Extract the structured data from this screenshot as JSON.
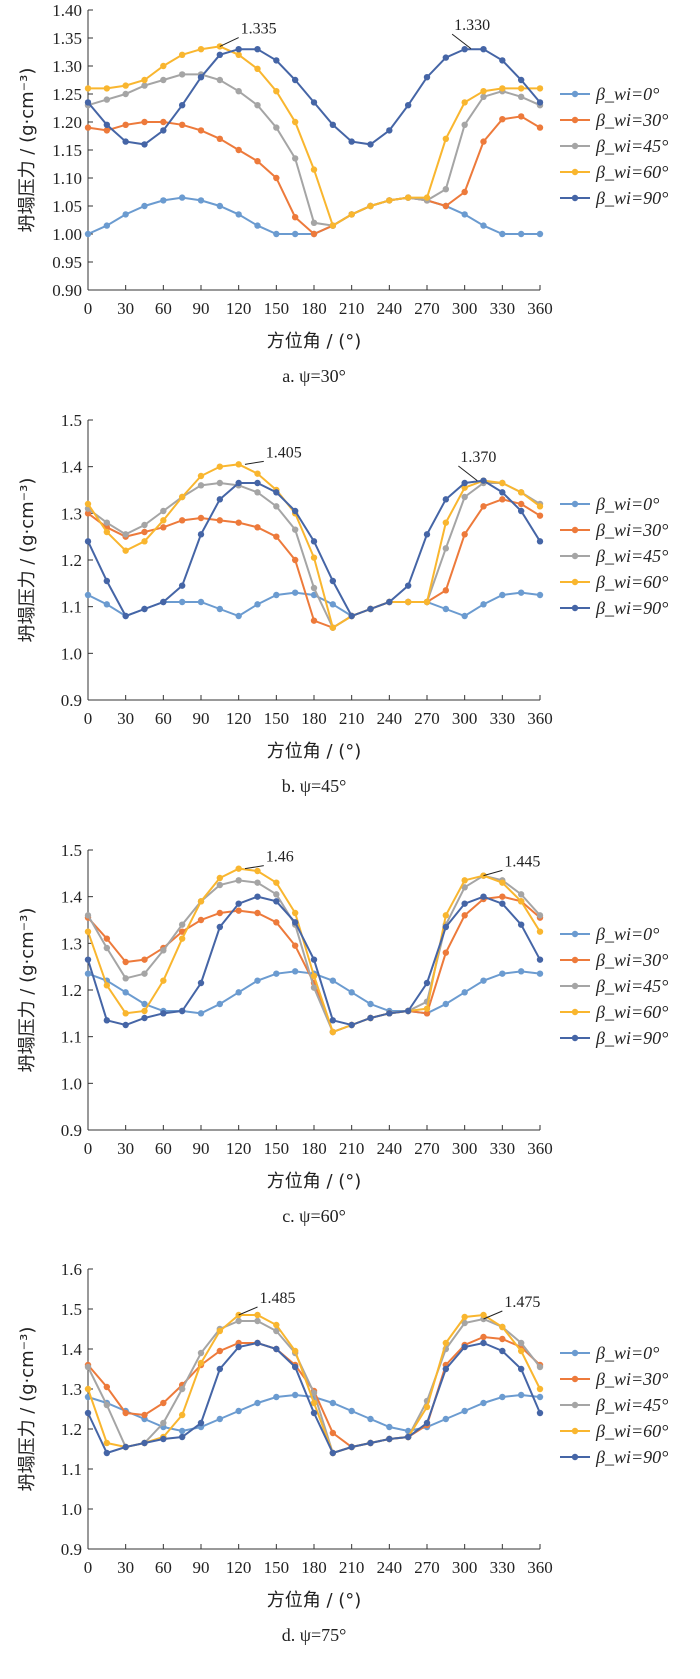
{
  "chart_data": [
    {
      "type": "line",
      "caption": "a. ψ=30°",
      "xlabel": "方位角 / (°)",
      "ylabel": "坍塌压力 / (g·cm⁻³)",
      "ylim": [
        0.9,
        1.4
      ],
      "yticks": [
        "0.90",
        "0.95",
        "1.00",
        "1.05",
        "1.10",
        "1.15",
        "1.20",
        "1.25",
        "1.30",
        "1.35",
        "1.40"
      ],
      "xticks": [
        "0",
        "30",
        "60",
        "90",
        "120",
        "150",
        "180",
        "210",
        "240",
        "270",
        "300",
        "330",
        "360"
      ],
      "x": [
        0,
        15,
        30,
        45,
        60,
        75,
        90,
        105,
        120,
        135,
        150,
        165,
        180,
        195,
        210,
        225,
        240,
        255,
        270,
        285,
        300,
        315,
        330,
        345,
        360
      ],
      "series": [
        {
          "name": "β_wi=0°",
          "values": [
            1.0,
            1.015,
            1.035,
            1.05,
            1.06,
            1.065,
            1.06,
            1.05,
            1.035,
            1.015,
            1.0,
            1.0,
            1.0,
            1.015,
            1.035,
            1.05,
            1.06,
            1.065,
            1.06,
            1.05,
            1.035,
            1.015,
            1.0,
            1.0,
            1.0
          ]
        },
        {
          "name": "β_wi=30°",
          "values": [
            1.19,
            1.185,
            1.195,
            1.2,
            1.2,
            1.195,
            1.185,
            1.17,
            1.15,
            1.13,
            1.1,
            1.03,
            1.0,
            1.015,
            1.035,
            1.05,
            1.06,
            1.065,
            1.06,
            1.05,
            1.075,
            1.165,
            1.205,
            1.21,
            1.19
          ]
        },
        {
          "name": "β_wi=45°",
          "values": [
            1.23,
            1.24,
            1.25,
            1.265,
            1.275,
            1.285,
            1.285,
            1.275,
            1.255,
            1.23,
            1.19,
            1.135,
            1.02,
            1.015,
            1.035,
            1.05,
            1.06,
            1.065,
            1.06,
            1.08,
            1.195,
            1.245,
            1.255,
            1.245,
            1.23
          ]
        },
        {
          "name": "β_wi=60°",
          "values": [
            1.26,
            1.26,
            1.265,
            1.275,
            1.3,
            1.32,
            1.33,
            1.335,
            1.32,
            1.295,
            1.255,
            1.2,
            1.115,
            1.015,
            1.035,
            1.05,
            1.06,
            1.065,
            1.065,
            1.17,
            1.235,
            1.255,
            1.26,
            1.26,
            1.26
          ]
        },
        {
          "name": "β_wi=90°",
          "values": [
            1.235,
            1.195,
            1.165,
            1.16,
            1.185,
            1.23,
            1.28,
            1.32,
            1.33,
            1.33,
            1.31,
            1.275,
            1.235,
            1.195,
            1.165,
            1.16,
            1.185,
            1.23,
            1.28,
            1.315,
            1.33,
            1.33,
            1.31,
            1.275,
            1.235
          ]
        }
      ],
      "annotations": [
        {
          "label": "1.335",
          "x": 105,
          "y": 1.335,
          "tx": 120,
          "ty": 1.358
        },
        {
          "label": "1.330",
          "x": 305,
          "y": 1.331,
          "tx": 290,
          "ty": 1.364
        }
      ]
    },
    {
      "type": "line",
      "caption": "b. ψ=45°",
      "xlabel": "方位角 / (°)",
      "ylabel": "坍塌压力 / (g·cm⁻³)",
      "ylim": [
        0.9,
        1.5
      ],
      "yticks": [
        "0.9",
        "1.0",
        "1.1",
        "1.2",
        "1.3",
        "1.4",
        "1.5"
      ],
      "xticks": [
        "0",
        "30",
        "60",
        "90",
        "120",
        "150",
        "180",
        "210",
        "240",
        "270",
        "300",
        "330",
        "360"
      ],
      "x": [
        0,
        15,
        30,
        45,
        60,
        75,
        90,
        105,
        120,
        135,
        150,
        165,
        180,
        195,
        210,
        225,
        240,
        255,
        270,
        285,
        300,
        315,
        330,
        345,
        360
      ],
      "series": [
        {
          "name": "β_wi=0°",
          "values": [
            1.125,
            1.105,
            1.08,
            1.095,
            1.11,
            1.11,
            1.11,
            1.095,
            1.08,
            1.105,
            1.125,
            1.13,
            1.125,
            1.105,
            1.08,
            1.095,
            1.11,
            1.11,
            1.11,
            1.095,
            1.08,
            1.105,
            1.125,
            1.13,
            1.125
          ]
        },
        {
          "name": "β_wi=30°",
          "values": [
            1.3,
            1.27,
            1.25,
            1.26,
            1.27,
            1.285,
            1.29,
            1.285,
            1.28,
            1.27,
            1.25,
            1.2,
            1.07,
            1.055,
            1.08,
            1.095,
            1.11,
            1.11,
            1.11,
            1.135,
            1.255,
            1.315,
            1.33,
            1.32,
            1.295
          ]
        },
        {
          "name": "β_wi=45°",
          "values": [
            1.31,
            1.28,
            1.255,
            1.275,
            1.305,
            1.335,
            1.36,
            1.365,
            1.36,
            1.345,
            1.315,
            1.265,
            1.14,
            1.055,
            1.08,
            1.095,
            1.11,
            1.11,
            1.11,
            1.225,
            1.335,
            1.365,
            1.365,
            1.345,
            1.32
          ]
        },
        {
          "name": "β_wi=60°",
          "values": [
            1.32,
            1.26,
            1.22,
            1.24,
            1.285,
            1.335,
            1.38,
            1.4,
            1.405,
            1.385,
            1.35,
            1.3,
            1.205,
            1.055,
            1.08,
            1.095,
            1.11,
            1.11,
            1.11,
            1.28,
            1.355,
            1.37,
            1.365,
            1.345,
            1.315
          ]
        },
        {
          "name": "β_wi=90°",
          "values": [
            1.24,
            1.155,
            1.08,
            1.095,
            1.11,
            1.145,
            1.255,
            1.33,
            1.365,
            1.365,
            1.345,
            1.305,
            1.24,
            1.155,
            1.08,
            1.095,
            1.11,
            1.145,
            1.255,
            1.33,
            1.365,
            1.37,
            1.345,
            1.305,
            1.24
          ]
        }
      ],
      "annotations": [
        {
          "label": "1.405",
          "x": 125,
          "y": 1.405,
          "tx": 140,
          "ty": 1.42
        },
        {
          "label": "1.370",
          "x": 310,
          "y": 1.37,
          "tx": 295,
          "ty": 1.41
        }
      ]
    },
    {
      "type": "line",
      "caption": "c. ψ=60°",
      "xlabel": "方位角 / (°)",
      "ylabel": "坍塌压力 / (g·cm⁻³)",
      "ylim": [
        0.9,
        1.5
      ],
      "yticks": [
        "0.9",
        "1.0",
        "1.1",
        "1.2",
        "1.3",
        "1.4",
        "1.5"
      ],
      "xticks": [
        "0",
        "30",
        "60",
        "90",
        "120",
        "150",
        "180",
        "210",
        "240",
        "270",
        "300",
        "330",
        "360"
      ],
      "x": [
        0,
        15,
        30,
        45,
        60,
        75,
        90,
        105,
        120,
        135,
        150,
        165,
        180,
        195,
        210,
        225,
        240,
        255,
        270,
        285,
        300,
        315,
        330,
        345,
        360
      ],
      "series": [
        {
          "name": "β_wi=0°",
          "values": [
            1.235,
            1.22,
            1.195,
            1.17,
            1.155,
            1.155,
            1.15,
            1.17,
            1.195,
            1.22,
            1.235,
            1.24,
            1.235,
            1.22,
            1.195,
            1.17,
            1.155,
            1.155,
            1.15,
            1.17,
            1.195,
            1.22,
            1.235,
            1.24,
            1.235
          ]
        },
        {
          "name": "β_wi=30°",
          "values": [
            1.355,
            1.31,
            1.26,
            1.265,
            1.29,
            1.325,
            1.35,
            1.365,
            1.37,
            1.365,
            1.345,
            1.295,
            1.215,
            1.11,
            1.125,
            1.14,
            1.15,
            1.155,
            1.15,
            1.28,
            1.36,
            1.395,
            1.4,
            1.39,
            1.355
          ]
        },
        {
          "name": "β_wi=45°",
          "values": [
            1.36,
            1.29,
            1.225,
            1.235,
            1.285,
            1.34,
            1.39,
            1.425,
            1.435,
            1.43,
            1.405,
            1.34,
            1.205,
            1.11,
            1.125,
            1.14,
            1.15,
            1.155,
            1.175,
            1.34,
            1.42,
            1.445,
            1.435,
            1.405,
            1.36
          ]
        },
        {
          "name": "β_wi=60°",
          "values": [
            1.325,
            1.21,
            1.15,
            1.155,
            1.22,
            1.31,
            1.39,
            1.44,
            1.46,
            1.455,
            1.43,
            1.365,
            1.23,
            1.11,
            1.125,
            1.14,
            1.15,
            1.155,
            1.16,
            1.36,
            1.435,
            1.445,
            1.43,
            1.39,
            1.325
          ]
        },
        {
          "name": "β_wi=90°",
          "values": [
            1.265,
            1.135,
            1.125,
            1.14,
            1.15,
            1.155,
            1.215,
            1.335,
            1.385,
            1.4,
            1.39,
            1.345,
            1.265,
            1.135,
            1.125,
            1.14,
            1.15,
            1.155,
            1.215,
            1.335,
            1.385,
            1.4,
            1.385,
            1.34,
            1.265
          ]
        }
      ],
      "annotations": [
        {
          "label": "1.46",
          "x": 125,
          "y": 1.46,
          "tx": 140,
          "ty": 1.475
        },
        {
          "label": "1.445",
          "x": 315,
          "y": 1.445,
          "tx": 330,
          "ty": 1.465
        }
      ]
    },
    {
      "type": "line",
      "caption": "d. ψ=75°",
      "xlabel": "方位角 / (°)",
      "ylabel": "坍塌压力 / (g·cm⁻³)",
      "ylim": [
        0.9,
        1.6
      ],
      "yticks": [
        "0.9",
        "1.0",
        "1.1",
        "1.2",
        "1.3",
        "1.4",
        "1.5",
        "1.6"
      ],
      "xticks": [
        "0",
        "30",
        "60",
        "90",
        "120",
        "150",
        "180",
        "210",
        "240",
        "270",
        "300",
        "330",
        "360"
      ],
      "x": [
        0,
        15,
        30,
        45,
        60,
        75,
        90,
        105,
        120,
        135,
        150,
        165,
        180,
        195,
        210,
        225,
        240,
        255,
        270,
        285,
        300,
        315,
        330,
        345,
        360
      ],
      "series": [
        {
          "name": "β_wi=0°",
          "values": [
            1.28,
            1.265,
            1.245,
            1.225,
            1.205,
            1.195,
            1.205,
            1.225,
            1.245,
            1.265,
            1.28,
            1.285,
            1.28,
            1.265,
            1.245,
            1.225,
            1.205,
            1.195,
            1.205,
            1.225,
            1.245,
            1.265,
            1.28,
            1.285,
            1.28
          ]
        },
        {
          "name": "β_wi=30°",
          "values": [
            1.36,
            1.305,
            1.24,
            1.235,
            1.265,
            1.31,
            1.36,
            1.395,
            1.415,
            1.415,
            1.4,
            1.36,
            1.295,
            1.19,
            1.155,
            1.165,
            1.175,
            1.18,
            1.21,
            1.36,
            1.41,
            1.43,
            1.425,
            1.405,
            1.36
          ]
        },
        {
          "name": "β_wi=45°",
          "values": [
            1.355,
            1.26,
            1.155,
            1.165,
            1.215,
            1.3,
            1.39,
            1.45,
            1.47,
            1.47,
            1.445,
            1.39,
            1.29,
            1.14,
            1.155,
            1.165,
            1.175,
            1.18,
            1.27,
            1.4,
            1.465,
            1.475,
            1.455,
            1.415,
            1.355
          ]
        },
        {
          "name": "β_wi=60°",
          "values": [
            1.3,
            1.165,
            1.155,
            1.165,
            1.18,
            1.235,
            1.365,
            1.445,
            1.485,
            1.485,
            1.46,
            1.395,
            1.265,
            1.14,
            1.155,
            1.165,
            1.175,
            1.18,
            1.255,
            1.415,
            1.48,
            1.485,
            1.455,
            1.395,
            1.3
          ]
        },
        {
          "name": "β_wi=90°",
          "values": [
            1.24,
            1.14,
            1.155,
            1.165,
            1.175,
            1.18,
            1.215,
            1.35,
            1.405,
            1.415,
            1.4,
            1.355,
            1.24,
            1.14,
            1.155,
            1.165,
            1.175,
            1.18,
            1.215,
            1.35,
            1.405,
            1.415,
            1.395,
            1.35,
            1.24
          ]
        }
      ],
      "annotations": [
        {
          "label": "1.485",
          "x": 120,
          "y": 1.485,
          "tx": 135,
          "ty": 1.515
        },
        {
          "label": "1.475",
          "x": 315,
          "y": 1.475,
          "tx": 330,
          "ty": 1.505
        }
      ]
    }
  ],
  "colors": [
    "#6b9bd0",
    "#ed7a3b",
    "#a5a5a5",
    "#f9b62f",
    "#4565a6"
  ]
}
